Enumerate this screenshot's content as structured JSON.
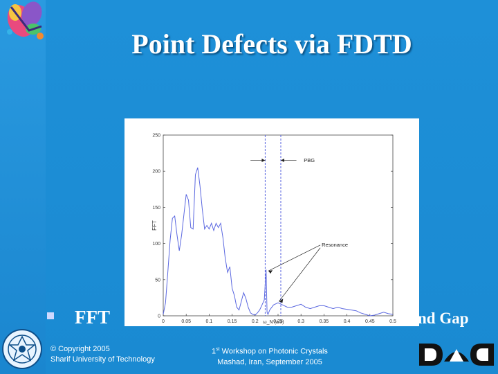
{
  "slide": {
    "title": "Point Defects via FDTD",
    "bullet_left": "FFT",
    "bullet_right": "nd Gap"
  },
  "footer": {
    "copyright": "© Copyright 2005",
    "university": "Sharif University of Technology",
    "workshop_num": "1",
    "workshop_sup": "st",
    "workshop_rest": " Workshop on Photonic Crystals",
    "location": "Mashad, Iran, September 2005"
  },
  "colors": {
    "background": "#1c8fd6",
    "plot_line": "#5a67e0",
    "title_text": "#ffffff"
  },
  "chart_data": {
    "type": "line",
    "title": "",
    "xlabel": "ω_N (a/λ)",
    "ylabel": "FFT",
    "xlim": [
      0,
      0.5
    ],
    "ylim": [
      0,
      250
    ],
    "x_tick_labels": [
      "0",
      "0.05",
      "0.1",
      "0.15",
      "0.2",
      "0.25",
      "0.3",
      "0.35",
      "0.4",
      "0.45",
      "0.5"
    ],
    "y_tick_labels": [
      "0",
      "50",
      "100",
      "150",
      "200",
      "250"
    ],
    "series": [
      {
        "x": [
          0,
          0.005,
          0.01,
          0.015,
          0.02,
          0.025,
          0.03,
          0.035,
          0.04,
          0.045,
          0.05,
          0.055,
          0.06,
          0.065,
          0.07,
          0.075,
          0.08,
          0.085,
          0.09,
          0.095,
          0.1,
          0.105,
          0.11,
          0.115,
          0.12,
          0.125,
          0.13,
          0.135,
          0.14,
          0.145,
          0.15,
          0.155,
          0.16,
          0.165,
          0.17,
          0.175,
          0.18,
          0.185,
          0.19,
          0.195,
          0.2,
          0.205,
          0.21,
          0.215,
          0.22,
          0.224,
          0.226,
          0.228,
          0.232,
          0.24,
          0.25,
          0.26,
          0.27,
          0.28,
          0.29,
          0.3,
          0.31,
          0.32,
          0.33,
          0.34,
          0.35,
          0.36,
          0.37,
          0.38,
          0.39,
          0.4,
          0.41,
          0.42,
          0.43,
          0.44,
          0.45,
          0.46,
          0.47,
          0.48,
          0.49,
          0.5
        ],
        "y": [
          2,
          18,
          60,
          105,
          135,
          138,
          112,
          90,
          112,
          140,
          168,
          160,
          122,
          120,
          195,
          205,
          180,
          148,
          120,
          125,
          120,
          128,
          118,
          128,
          122,
          128,
          108,
          80,
          60,
          68,
          38,
          28,
          12,
          8,
          20,
          32,
          24,
          12,
          4,
          2,
          1,
          4,
          8,
          15,
          22,
          64,
          5,
          2,
          8,
          15,
          18,
          15,
          12,
          12,
          14,
          16,
          12,
          10,
          12,
          14,
          14,
          12,
          10,
          12,
          10,
          9,
          8,
          7,
          4,
          2,
          0,
          1,
          3,
          5,
          3,
          2
        ]
      }
    ],
    "vertical_lines": [
      0.222,
      0.256
    ],
    "annotations": [
      {
        "text": "PBG",
        "x": 0.3,
        "y": 215
      },
      {
        "text": "Resonance",
        "x": 0.345,
        "y": 96
      }
    ]
  }
}
